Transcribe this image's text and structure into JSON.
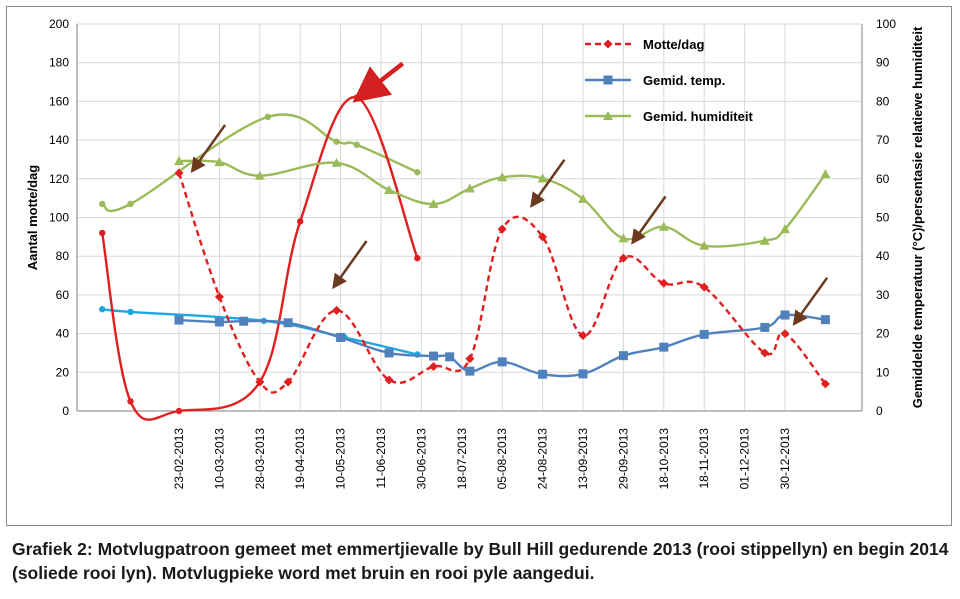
{
  "chart_data": {
    "type": "line",
    "x_tick_labels": [
      "23-02-2013",
      "10-03-2013",
      "28-03-2013",
      "19-04-2013",
      "10-05-2013",
      "11-06-2013",
      "30-06-2013",
      "18-07-2013",
      "05-08-2013",
      "24-08-2013",
      "13-09-2013",
      "29-09-2013",
      "18-10-2013",
      "18-11-2013",
      "01-12-2013",
      "30-12-2013"
    ],
    "y_left": {
      "label": "Aantal motte/dag",
      "range": [
        0,
        200
      ],
      "ticks": [
        0,
        20,
        40,
        60,
        80,
        100,
        120,
        140,
        160,
        180,
        200
      ]
    },
    "y_right": {
      "label": "Gemiddelde temperatuur (°C)/persentasie relatiewe humiditeit",
      "range": [
        0,
        100
      ],
      "ticks": [
        0,
        10,
        20,
        30,
        40,
        50,
        60,
        70,
        80,
        90,
        100
      ]
    },
    "series": [
      {
        "name": "Motte/dag",
        "axis": "left",
        "color": "#e02020",
        "style": "dashed",
        "marker": "diamond",
        "points": [
          [
            0,
            123
          ],
          [
            1,
            59
          ],
          [
            2,
            15
          ],
          [
            2.7,
            15
          ],
          [
            3.9,
            52
          ],
          [
            5.2,
            16
          ],
          [
            6.3,
            23
          ],
          [
            7.2,
            27
          ],
          [
            8,
            94
          ],
          [
            9,
            90
          ],
          [
            10,
            39
          ],
          [
            11,
            79
          ],
          [
            12,
            66
          ],
          [
            13,
            64
          ],
          [
            14.5,
            30
          ],
          [
            15,
            40
          ],
          [
            16,
            14
          ]
        ]
      },
      {
        "name": "Gemid. temp.",
        "axis": "right",
        "color": "#4f81bd",
        "style": "solid",
        "marker": "square",
        "points": [
          [
            0,
            23.5
          ],
          [
            1,
            23
          ],
          [
            1.6,
            23.2
          ],
          [
            2.7,
            22.8
          ],
          [
            4,
            19
          ],
          [
            5.2,
            15
          ],
          [
            6.3,
            14.2
          ],
          [
            6.7,
            14
          ],
          [
            7.2,
            10.3
          ],
          [
            8,
            12.7
          ],
          [
            9,
            9.5
          ],
          [
            10,
            9.6
          ],
          [
            11,
            14.3
          ],
          [
            12,
            16.5
          ],
          [
            13,
            19.8
          ],
          [
            14.5,
            21.6
          ],
          [
            15,
            24.8
          ],
          [
            16,
            23.6
          ]
        ]
      },
      {
        "name": "Gemid. humiditeit",
        "axis": "right",
        "color": "#9bbb59",
        "style": "solid",
        "marker": "triangle",
        "points": [
          [
            0,
            64.6
          ],
          [
            1,
            64.3
          ],
          [
            2,
            60.8
          ],
          [
            3.9,
            64.1
          ],
          [
            5.2,
            57.1
          ],
          [
            6.3,
            53.5
          ],
          [
            7.2,
            57.5
          ],
          [
            8,
            60.4
          ],
          [
            9,
            60.1
          ],
          [
            10,
            54.8
          ],
          [
            11,
            44.6
          ],
          [
            12,
            47.6
          ],
          [
            13,
            42.7
          ],
          [
            14.5,
            44
          ],
          [
            15,
            47
          ],
          [
            16,
            61.2
          ]
        ]
      },
      {
        "name": "",
        "axis": "left",
        "color": "#e02020",
        "style": "solid",
        "marker": "dot",
        "points": [
          [
            -1.9,
            92
          ],
          [
            -1.2,
            5
          ],
          [
            0,
            0
          ],
          [
            2,
            15
          ],
          [
            3,
            98
          ],
          [
            4.4,
            162
          ],
          [
            5.9,
            79
          ]
        ]
      },
      {
        "name": "",
        "axis": "right",
        "color": "#1ea7e1",
        "style": "solid",
        "marker": "dot",
        "points": [
          [
            -1.9,
            26.3
          ],
          [
            -1.2,
            25.6
          ],
          [
            2.1,
            23.3
          ],
          [
            4.1,
            19
          ],
          [
            5.9,
            14.6
          ]
        ]
      },
      {
        "name": "",
        "axis": "right",
        "color": "#9bbb59",
        "style": "solid",
        "marker": "dot",
        "points": [
          [
            -1.9,
            53.5
          ],
          [
            -1.2,
            53.5
          ],
          [
            2.2,
            76
          ],
          [
            3.9,
            69.6
          ],
          [
            4.4,
            68.8
          ],
          [
            5.9,
            61.7
          ]
        ]
      }
    ],
    "legend": {
      "position": "top-right"
    },
    "annotations": [
      {
        "type": "arrow",
        "color": "#e02020",
        "x": 4.4,
        "y": 162
      },
      {
        "type": "arrow",
        "color": "#6b3a1f",
        "x": 0.3,
        "y": 122
      },
      {
        "type": "arrow",
        "color": "#6b3a1f",
        "x": 3.8,
        "y": 62
      },
      {
        "type": "arrow",
        "color": "#6b3a1f",
        "x": 8.7,
        "y": 104
      },
      {
        "type": "arrow",
        "color": "#6b3a1f",
        "x": 11.2,
        "y": 85
      },
      {
        "type": "arrow",
        "color": "#6b3a1f",
        "x": 15.2,
        "y": 43
      }
    ],
    "grid": true
  },
  "caption": "Grafiek 2: Motvlugpatroon gemeet met emmertjievalle by Bull Hill gedurende 2013 (rooi stippellyn) en begin 2014 (soliede rooi lyn). Motvlugpieke word met bruin en rooi pyle aangedui."
}
